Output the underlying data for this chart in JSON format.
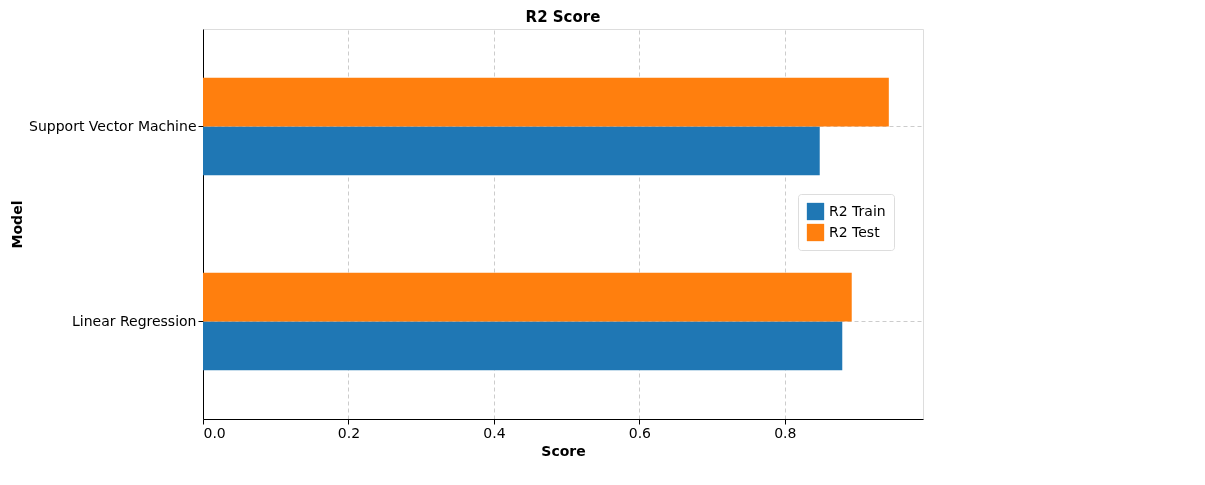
{
  "chart_data": {
    "type": "bar",
    "orientation": "horizontal",
    "title": "R2 Score",
    "xlabel": "Score",
    "ylabel": "Model",
    "categories": [
      "Support Vector Machine",
      "Linear Regression"
    ],
    "series": [
      {
        "name": "R2 Train",
        "color": "#1f77b4",
        "values": [
          0.848,
          0.879
        ]
      },
      {
        "name": "R2 Test",
        "color": "#ff7f0e",
        "values": [
          0.943,
          0.892
        ]
      }
    ],
    "xlim": [
      0,
      0.99
    ],
    "xticks": [
      {
        "value": 0,
        "label": "0.0"
      },
      {
        "value": 0.2,
        "label": "0.2"
      },
      {
        "value": 0.4,
        "label": "0.4"
      },
      {
        "value": 0.6,
        "label": "0.6"
      },
      {
        "value": 0.8,
        "label": "0.8"
      }
    ],
    "grid": true,
    "legend": "right"
  }
}
